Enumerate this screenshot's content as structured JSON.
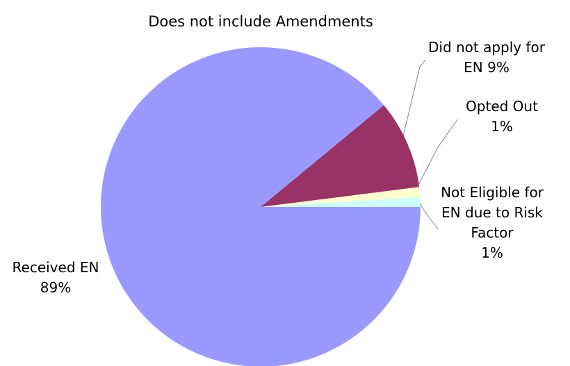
{
  "chart_data": {
    "type": "pie",
    "title": "Does not include Amendments",
    "slices": [
      {
        "label_lines": [
          "Not Eligible for",
          "EN due to Risk",
          "Factor",
          "1%"
        ],
        "value": 1,
        "color": "#ccffff"
      },
      {
        "label_lines": [
          "Opted Out",
          "1%"
        ],
        "value": 1,
        "color": "#ffffcc"
      },
      {
        "label_lines": [
          "Did not apply for",
          "EN 9%"
        ],
        "value": 9,
        "color": "#993366"
      },
      {
        "label_lines": [
          "Received EN",
          "89%"
        ],
        "value": 89,
        "color": "#9999ff"
      }
    ],
    "legend": "none"
  }
}
